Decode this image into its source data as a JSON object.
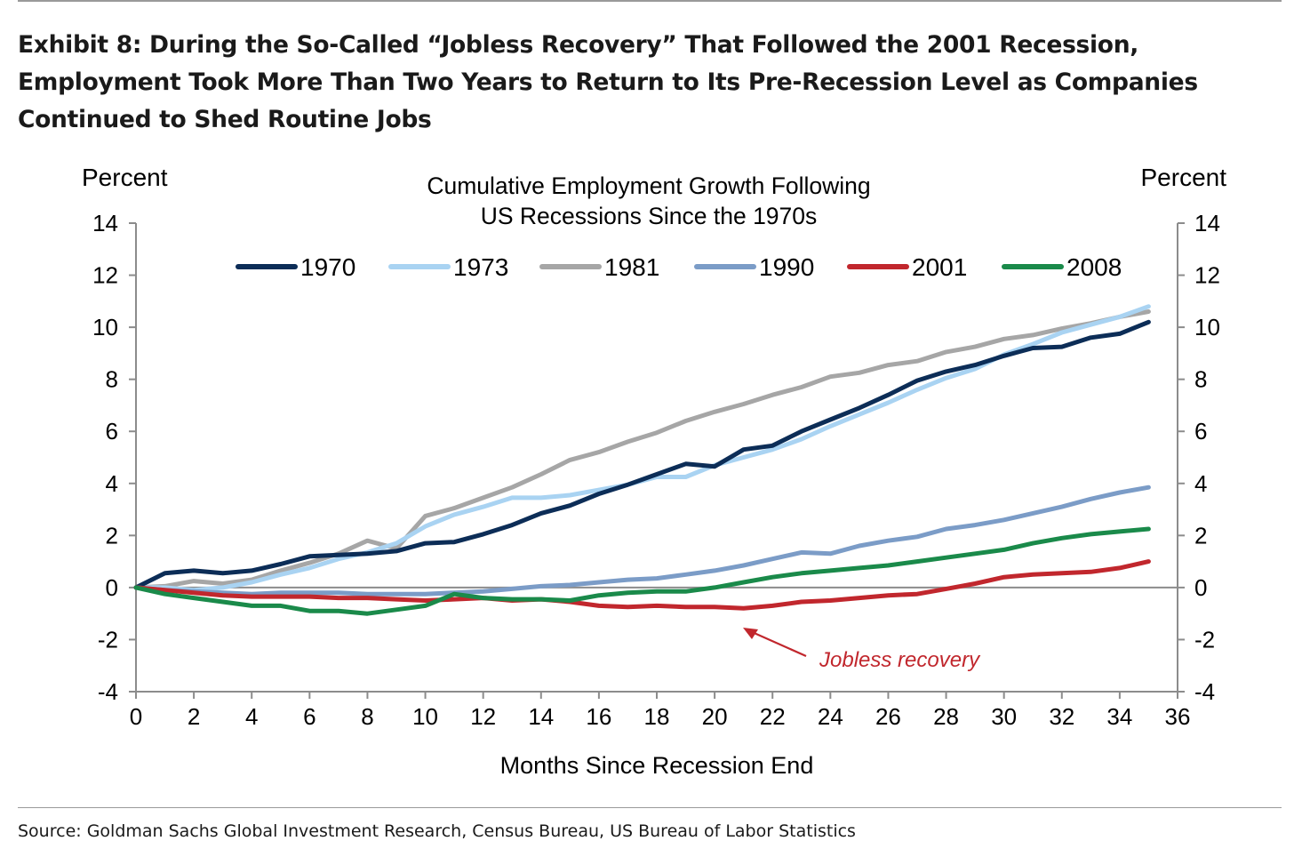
{
  "exhibit_title": "Exhibit 8: During the So-Called “Jobless Recovery” That Followed the 2001 Recession, Employment Took More Than Two Years to Return to Its Pre-Recession Level as Companies Continued to Shed Routine Jobs",
  "source": "Source: Goldman Sachs Global Investment Research, Census Bureau, US Bureau of Labor Statistics",
  "chart_data": {
    "type": "line",
    "title": "Cumulative Employment Growth Following",
    "subtitle": "US Recessions Since the 1970s",
    "ylabel_left": "Percent",
    "ylabel_right": "Percent",
    "xlabel": "Months Since Recession End",
    "xlim": [
      0,
      36
    ],
    "ylim": [
      -4,
      14
    ],
    "xticks": [
      0,
      2,
      4,
      6,
      8,
      10,
      12,
      14,
      16,
      18,
      20,
      22,
      24,
      26,
      28,
      30,
      32,
      34,
      36
    ],
    "yticks": [
      -4,
      -2,
      0,
      2,
      4,
      6,
      8,
      10,
      12,
      14
    ],
    "legend_position": "top",
    "annotation": {
      "text": "Jobless recovery",
      "points_to": [
        21,
        -0.8
      ],
      "color": "#c1272d"
    },
    "series": [
      {
        "name": "1970",
        "color": "#0c2d57",
        "values": [
          0,
          0.55,
          0.65,
          0.55,
          0.65,
          0.9,
          1.2,
          1.25,
          1.3,
          1.4,
          1.7,
          1.75,
          2.05,
          2.4,
          2.85,
          3.15,
          3.6,
          3.95,
          4.35,
          4.75,
          4.65,
          5.3,
          5.45,
          6.0,
          6.45,
          6.9,
          7.4,
          7.95,
          8.3,
          8.55,
          8.9,
          9.2,
          9.25,
          9.6,
          9.75,
          10.2
        ]
      },
      {
        "name": "1973",
        "color": "#a9d3f2",
        "values": [
          0,
          0.0,
          -0.1,
          0.0,
          0.2,
          0.5,
          0.75,
          1.1,
          1.35,
          1.7,
          2.35,
          2.8,
          3.1,
          3.45,
          3.45,
          3.55,
          3.75,
          3.95,
          4.25,
          4.25,
          4.7,
          5.0,
          5.3,
          5.7,
          6.2,
          6.65,
          7.1,
          7.6,
          8.05,
          8.4,
          8.95,
          9.35,
          9.8,
          10.1,
          10.4,
          10.8
        ]
      },
      {
        "name": "1981",
        "color": "#a6a6a6",
        "values": [
          0,
          0.05,
          0.25,
          0.15,
          0.3,
          0.65,
          0.95,
          1.3,
          1.8,
          1.5,
          2.75,
          3.05,
          3.45,
          3.85,
          4.35,
          4.9,
          5.2,
          5.6,
          5.95,
          6.4,
          6.75,
          7.05,
          7.4,
          7.7,
          8.1,
          8.25,
          8.55,
          8.7,
          9.05,
          9.25,
          9.55,
          9.7,
          9.95,
          10.15,
          10.4,
          10.6
        ]
      },
      {
        "name": "1990",
        "color": "#7b9cc7",
        "values": [
          0,
          -0.1,
          -0.15,
          -0.2,
          -0.25,
          -0.2,
          -0.2,
          -0.2,
          -0.25,
          -0.25,
          -0.25,
          -0.2,
          -0.15,
          -0.05,
          0.05,
          0.1,
          0.2,
          0.3,
          0.35,
          0.5,
          0.65,
          0.85,
          1.1,
          1.35,
          1.3,
          1.6,
          1.8,
          1.95,
          2.25,
          2.4,
          2.6,
          2.85,
          3.1,
          3.4,
          3.65,
          3.85
        ]
      },
      {
        "name": "2001",
        "color": "#c1272d",
        "values": [
          0,
          -0.1,
          -0.2,
          -0.3,
          -0.35,
          -0.35,
          -0.35,
          -0.4,
          -0.4,
          -0.45,
          -0.5,
          -0.45,
          -0.4,
          -0.5,
          -0.45,
          -0.55,
          -0.7,
          -0.75,
          -0.7,
          -0.75,
          -0.75,
          -0.8,
          -0.7,
          -0.55,
          -0.5,
          -0.4,
          -0.3,
          -0.25,
          -0.05,
          0.15,
          0.4,
          0.5,
          0.55,
          0.6,
          0.75,
          1.0
        ]
      },
      {
        "name": "2008",
        "color": "#1a8a4a",
        "values": [
          0,
          -0.25,
          -0.4,
          -0.55,
          -0.7,
          -0.7,
          -0.9,
          -0.9,
          -1.0,
          -0.85,
          -0.7,
          -0.25,
          -0.4,
          -0.45,
          -0.45,
          -0.5,
          -0.3,
          -0.2,
          -0.15,
          -0.15,
          0.0,
          0.2,
          0.4,
          0.55,
          0.65,
          0.75,
          0.85,
          1.0,
          1.15,
          1.3,
          1.45,
          1.7,
          1.9,
          2.05,
          2.15,
          2.25
        ]
      }
    ]
  }
}
